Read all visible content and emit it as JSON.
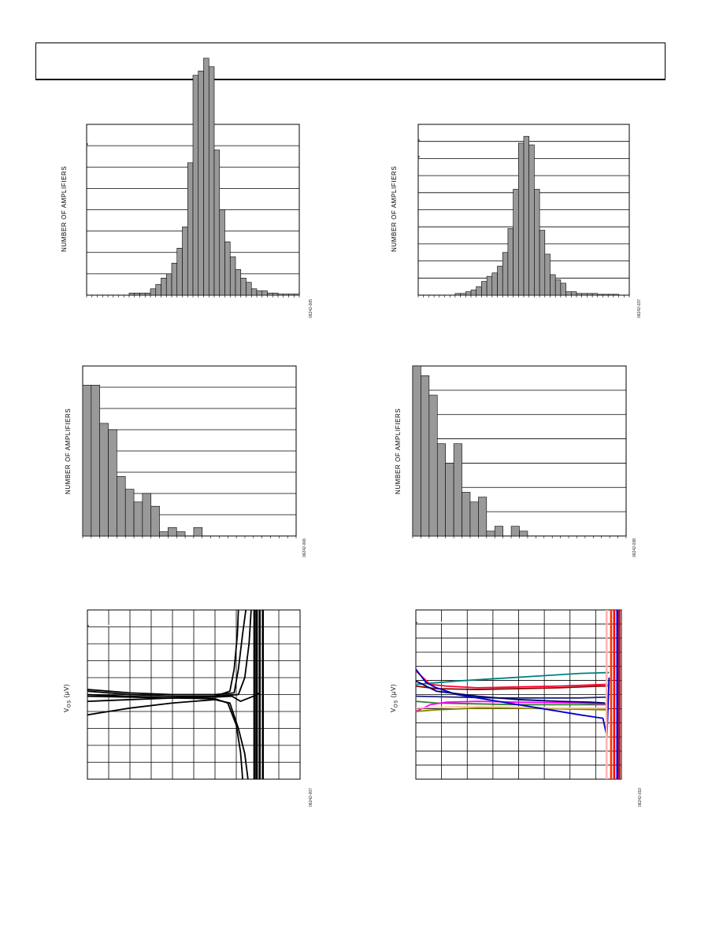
{
  "header": {
    "text": ""
  },
  "charts": [
    {
      "id": "fig1",
      "ylabel": "NUMBER OF AMPLIFIERS",
      "fig_id": "06242-005",
      "chart_data": {
        "type": "bar",
        "title": "",
        "xlabel": "",
        "ylabel": "NUMBER OF AMPLIFIERS",
        "x_bins": 40,
        "y_gridlines": 8,
        "values": [
          0,
          0,
          0,
          0,
          0,
          0,
          0,
          0,
          0.1,
          0.1,
          0.1,
          0.1,
          0.3,
          0.5,
          0.8,
          1.0,
          1.5,
          2.2,
          3.2,
          6.2,
          10.3,
          10.5,
          11.1,
          10.7,
          6.8,
          4.0,
          2.5,
          1.8,
          1.2,
          0.8,
          0.6,
          0.3,
          0.2,
          0.2,
          0.1,
          0.1,
          0.05,
          0.05,
          0.05,
          0.05
        ]
      }
    },
    {
      "id": "fig2",
      "ylabel": "NUMBER OF AMPLIFIERS",
      "fig_id": "06242-037",
      "chart_data": {
        "type": "bar",
        "title": "",
        "xlabel": "",
        "ylabel": "NUMBER OF AMPLIFIERS",
        "x_bins": 40,
        "y_gridlines": 10,
        "values": [
          0,
          0,
          0,
          0,
          0,
          0,
          0,
          0.1,
          0.1,
          0.2,
          0.3,
          0.5,
          0.8,
          1.1,
          1.3,
          1.7,
          2.5,
          3.9,
          6.2,
          8.9,
          9.3,
          8.8,
          6.2,
          3.8,
          2.4,
          1.2,
          0.9,
          0.7,
          0.2,
          0.2,
          0.1,
          0.1,
          0.1,
          0.1,
          0.05,
          0.05,
          0.05,
          0.05,
          0,
          0
        ]
      }
    },
    {
      "id": "fig3",
      "ylabel": "NUMBER OF AMPLIFIERS",
      "fig_id": "06242-006",
      "chart_data": {
        "type": "bar",
        "title": "",
        "xlabel": "",
        "ylabel": "NUMBER OF AMPLIFIERS",
        "x_bins": 25,
        "y_gridlines": 8,
        "values": [
          7.1,
          7.1,
          5.3,
          5.0,
          2.8,
          2.2,
          1.6,
          2.0,
          1.4,
          0.2,
          0.4,
          0.2,
          0,
          0.4,
          0,
          0,
          0,
          0,
          0,
          0,
          0,
          0,
          0,
          0,
          0
        ]
      }
    },
    {
      "id": "fig4",
      "ylabel": "NUMBER OF AMPLIFIERS",
      "fig_id": "06242-038",
      "chart_data": {
        "type": "bar",
        "title": "",
        "xlabel": "",
        "ylabel": "NUMBER OF AMPLIFIERS",
        "x_bins": 26,
        "y_gridlines": 7,
        "values": [
          7.0,
          6.6,
          5.8,
          3.8,
          3.0,
          3.8,
          1.8,
          1.4,
          1.6,
          0.2,
          0.4,
          0,
          0.4,
          0.2,
          0,
          0,
          0,
          0,
          0,
          0,
          0,
          0,
          0,
          0,
          0,
          0
        ]
      }
    },
    {
      "id": "fig5",
      "ylabel": "V",
      "ylabel_sub": "OS",
      "ylabel_unit": " (µV)",
      "fig_id": "06242-007",
      "chart_data": {
        "type": "line",
        "title": "",
        "xlabel": "",
        "ylabel": "VOS (µV)",
        "x_divisions": 10,
        "y_divisions": 10,
        "xlim": [
          0,
          10
        ],
        "ylim": [
          0,
          10
        ],
        "series": [
          {
            "color": "#000000",
            "x": [
              0,
              2,
              4,
              6,
              6.7,
              6.9,
              7.05,
              7.1
            ],
            "y": [
              5.2,
              5.0,
              4.9,
              4.9,
              5.2,
              6.5,
              8.5,
              10
            ]
          },
          {
            "color": "#000000",
            "x": [
              0,
              2,
              4,
              6,
              6.9,
              7.1,
              7.3,
              7.45
            ],
            "y": [
              5.3,
              5.1,
              5.0,
              5.0,
              5.1,
              6.5,
              8.6,
              10
            ]
          },
          {
            "color": "#000000",
            "x": [
              0,
              2,
              4,
              6,
              7.1,
              7.4,
              7.6,
              7.7
            ],
            "y": [
              4.6,
              4.7,
              4.8,
              4.9,
              5.0,
              6.0,
              8.0,
              10
            ]
          },
          {
            "color": "#000000",
            "x": [
              0,
              2,
              4,
              6,
              6.7,
              7.1,
              7.4,
              7.55
            ],
            "y": [
              3.8,
              4.2,
              4.5,
              4.7,
              4.5,
              3.0,
              1.5,
              0
            ]
          },
          {
            "color": "#000000",
            "x": [
              0,
              2,
              4,
              6,
              6.6,
              7.0,
              7.2,
              7.3
            ],
            "y": [
              5.0,
              4.9,
              4.8,
              4.75,
              4.5,
              3.2,
              1.6,
              0
            ]
          },
          {
            "color": "#000000",
            "x": [
              0,
              2,
              4,
              6,
              6.8,
              7.2,
              7.8,
              8.1
            ],
            "y": [
              4.9,
              4.85,
              4.8,
              4.85,
              4.9,
              4.6,
              4.9,
              5.1
            ]
          },
          {
            "color": "#000000",
            "x": [
              7.85,
              7.85
            ],
            "y": [
              0,
              10
            ]
          },
          {
            "color": "#000000",
            "x": [
              7.95,
              7.95
            ],
            "y": [
              0,
              10
            ]
          },
          {
            "color": "#000000",
            "x": [
              8.1,
              8.1
            ],
            "y": [
              0,
              10
            ]
          },
          {
            "color": "#000000",
            "x": [
              8.25,
              8.25
            ],
            "y": [
              0,
              10
            ]
          }
        ]
      }
    },
    {
      "id": "fig6",
      "ylabel": "V",
      "ylabel_sub": "OS",
      "ylabel_unit": " (µV)",
      "fig_id": "06242-010",
      "chart_data": {
        "type": "line",
        "title": "",
        "xlabel": "",
        "ylabel": "VOS (µV)",
        "x_divisions": 8,
        "y_divisions": 12,
        "xlim": [
          0,
          10
        ],
        "ylim": [
          0,
          10
        ],
        "series": [
          {
            "color": "#008080",
            "x": [
              0,
              1,
              2,
              4,
              6,
              8,
              9.4
            ],
            "y": [
              5.6,
              5.7,
              5.8,
              5.95,
              6.1,
              6.25,
              6.3
            ]
          },
          {
            "color": "#ff0033",
            "x": [
              0,
              0.7,
              1.5,
              3,
              5,
              7,
              9.2,
              9.35
            ],
            "y": [
              6.4,
              5.6,
              5.5,
              5.4,
              5.45,
              5.5,
              5.6,
              5.6
            ]
          },
          {
            "color": "#8b0000",
            "x": [
              0,
              1,
              3,
              5,
              7,
              9,
              9.35
            ],
            "y": [
              5.5,
              5.35,
              5.3,
              5.35,
              5.4,
              5.5,
              5.5
            ]
          },
          {
            "color": "#1a237e",
            "x": [
              0,
              2,
              4,
              6,
              8,
              9.35
            ],
            "y": [
              4.9,
              4.85,
              4.8,
              4.8,
              4.8,
              4.85
            ]
          },
          {
            "color": "#2e7d32",
            "x": [
              0,
              1,
              3,
              5,
              7,
              9.3
            ],
            "y": [
              4.6,
              4.5,
              4.45,
              4.4,
              4.4,
              4.4
            ]
          },
          {
            "color": "#ff00ff",
            "x": [
              0,
              0.7,
              1.5,
              3,
              5,
              8,
              9.3
            ],
            "y": [
              4.0,
              4.4,
              4.55,
              4.6,
              4.55,
              4.5,
              4.45
            ]
          },
          {
            "color": "#808000",
            "x": [
              0,
              1,
              3,
              5,
              7,
              9.3
            ],
            "y": [
              4.0,
              4.1,
              4.2,
              4.2,
              4.15,
              4.1
            ]
          },
          {
            "color": "#ffcc99",
            "x": [
              0,
              1,
              3,
              5,
              7,
              9.3
            ],
            "y": [
              4.2,
              4.25,
              4.3,
              4.25,
              4.2,
              4.2
            ]
          },
          {
            "color": "#0000cc",
            "x": [
              0,
              0.5,
              1,
              2,
              4,
              6,
              8,
              9.1,
              9.3,
              9.4
            ],
            "y": [
              6.5,
              5.7,
              5.4,
              5.0,
              4.6,
              4.2,
              3.8,
              3.6,
              2.5,
              6.0
            ]
          },
          {
            "color": "#000066",
            "x": [
              0,
              1,
              3,
              5,
              7,
              8.5,
              9.2
            ],
            "y": [
              5.8,
              5.2,
              4.9,
              4.7,
              4.6,
              4.55,
              4.5
            ]
          },
          {
            "color": "#ffb3b3",
            "x": [
              9.28,
              9.28
            ],
            "y": [
              0,
              10
            ]
          },
          {
            "color": "#ff3300",
            "x": [
              9.5,
              9.5
            ],
            "y": [
              0,
              10
            ]
          },
          {
            "color": "#ff0000",
            "x": [
              9.65,
              9.65
            ],
            "y": [
              0,
              10
            ]
          },
          {
            "color": "#0000ff",
            "x": [
              9.8,
              9.8
            ],
            "y": [
              0,
              10
            ]
          },
          {
            "color": "#cc0000",
            "x": [
              9.9,
              9.9
            ],
            "y": [
              0,
              10
            ]
          }
        ]
      }
    }
  ]
}
